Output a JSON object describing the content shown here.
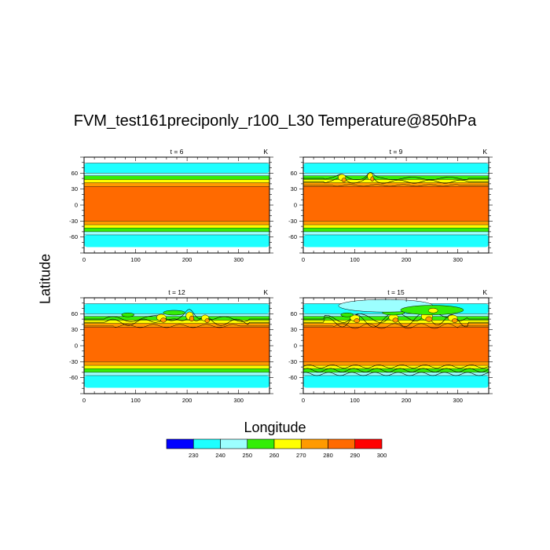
{
  "figure": {
    "title": "FVM_test161preciponly_r100_L30 Temperature@850hPa",
    "xlabel": "Longitude",
    "ylabel": "Latitude"
  },
  "chart_data": {
    "type": "heatmap",
    "field": "Temperature@850hPa",
    "units": "K",
    "xlim": [
      0,
      360
    ],
    "ylim": [
      -90,
      90
    ],
    "x_ticks": [
      0,
      100,
      200,
      300
    ],
    "y_ticks": [
      60,
      30,
      0,
      -30,
      -60
    ],
    "panels": [
      {
        "label": "t = 6",
        "units": "K",
        "perturbation": 0
      },
      {
        "label": "t = 9",
        "units": "K",
        "perturbation": 1
      },
      {
        "label": "t = 12",
        "units": "K",
        "perturbation": 2
      },
      {
        "label": "t = 15",
        "units": "K",
        "perturbation": 3
      }
    ],
    "zonal_bands": [
      {
        "lat_min": 79,
        "lat_max": 90,
        "value": 245,
        "color": "#ffffff"
      },
      {
        "lat_min": 60,
        "lat_max": 79,
        "value": 245,
        "color": "#1effff"
      },
      {
        "lat_min": 55,
        "lat_max": 60,
        "value": 255,
        "color": "#9cffff"
      },
      {
        "lat_min": 48,
        "lat_max": 55,
        "value": 265,
        "color": "#34ee08"
      },
      {
        "lat_min": 42,
        "lat_max": 48,
        "value": 275,
        "color": "#ffff00"
      },
      {
        "lat_min": 35,
        "lat_max": 42,
        "value": 285,
        "color": "#ff9a00"
      },
      {
        "lat_min": -30,
        "lat_max": 35,
        "value": 295,
        "color": "#ff6a00"
      },
      {
        "lat_min": -37,
        "lat_max": -30,
        "value": 285,
        "color": "#ff9a00"
      },
      {
        "lat_min": -43,
        "lat_max": -37,
        "value": 275,
        "color": "#ffff00"
      },
      {
        "lat_min": -50,
        "lat_max": -43,
        "value": 265,
        "color": "#34ee08"
      },
      {
        "lat_min": -56,
        "lat_max": -50,
        "value": 255,
        "color": "#9cffff"
      },
      {
        "lat_min": -79,
        "lat_max": -56,
        "value": 245,
        "color": "#1effff"
      },
      {
        "lat_min": -90,
        "lat_max": -79,
        "value": 245,
        "color": "#ffffff"
      }
    ],
    "colorbar": {
      "colors": [
        "#0000ff",
        "#1effff",
        "#9cffff",
        "#34ee08",
        "#ffff00",
        "#ff9a00",
        "#ff6a00",
        "#ff0000"
      ],
      "labels": [
        "230",
        "240",
        "250",
        "260",
        "270",
        "280",
        "290",
        "300"
      ]
    }
  }
}
